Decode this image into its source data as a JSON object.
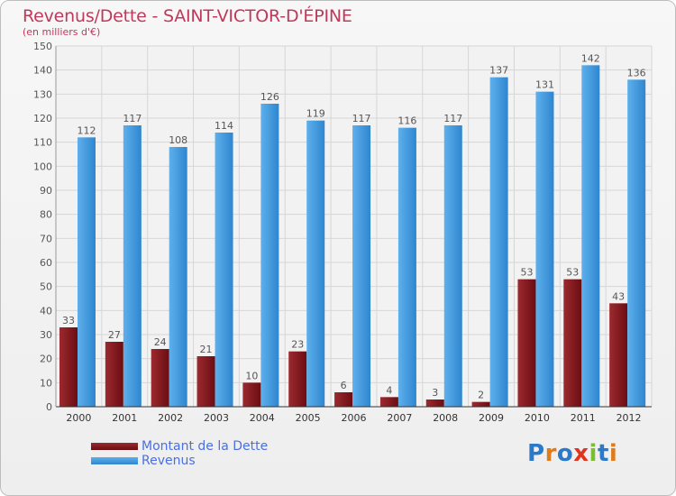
{
  "header": {
    "title": "Revenus/Dette - SAINT-VICTOR-D'ÉPINE",
    "unit": "(en milliers d'€)"
  },
  "legend": {
    "debt_label": "Montant de la Dette",
    "revenue_label": "Revenus"
  },
  "logo": {
    "letters": [
      "P",
      "r",
      "o",
      "x",
      "i",
      "t",
      "i"
    ]
  },
  "colors": {
    "debt": "#6b0d12",
    "debt_light": "#9c2a2f",
    "revenue": "#2f86cf",
    "revenue_light": "#5eb0ec",
    "label_text": "#555555",
    "title": "#c0395a",
    "logo_letters": [
      "#2b79c9",
      "#e07b1c",
      "#2b79c9",
      "#e2341d",
      "#7bbf2e",
      "#2b79c9",
      "#e07b1c"
    ]
  },
  "chart_data": {
    "type": "bar",
    "title": "Revenus/Dette - SAINT-VICTOR-D'ÉPINE",
    "ylabel": "(en milliers d'€)",
    "xlabel": "",
    "categories": [
      "2000",
      "2001",
      "2002",
      "2003",
      "2004",
      "2005",
      "2006",
      "2007",
      "2008",
      "2009",
      "2010",
      "2011",
      "2012"
    ],
    "series": [
      {
        "name": "Montant de la Dette",
        "values": [
          33,
          27,
          24,
          21,
          10,
          23,
          6,
          4,
          3,
          2,
          53,
          53,
          43
        ]
      },
      {
        "name": "Revenus",
        "values": [
          112,
          117,
          108,
          114,
          126,
          119,
          117,
          116,
          117,
          137,
          131,
          142,
          136
        ]
      }
    ],
    "ylim": [
      0,
      150
    ],
    "ytick_step": 10,
    "grid": true,
    "legend_position": "bottom-left"
  }
}
